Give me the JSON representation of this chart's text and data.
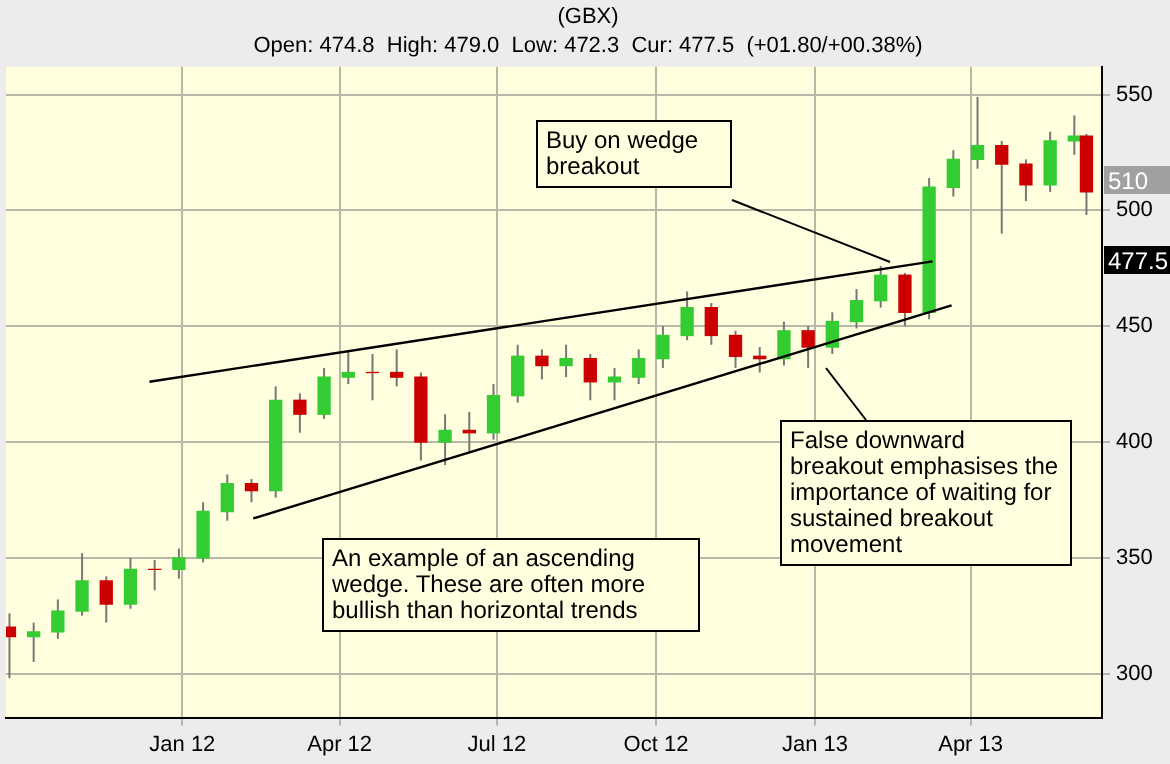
{
  "chart_data": {
    "type": "candlestick",
    "title": "(GBX)",
    "subtitle": "Open: 474.8  High: 479.0  Low: 472.3  Cur: 477.5  (+01.80/+00.38%)",
    "xlim": [
      "2011-09-21",
      "2013-06-16"
    ],
    "xticks": [
      {
        "value": "2012-01-01",
        "label": "Jan 12"
      },
      {
        "value": "2012-04-01",
        "label": "Apr 12"
      },
      {
        "value": "2012-07-01",
        "label": "Jul 12"
      },
      {
        "value": "2012-10-01",
        "label": "Oct 12"
      },
      {
        "value": "2013-01-01",
        "label": "Jan 13"
      },
      {
        "value": "2013-04-01",
        "label": "Apr 13"
      }
    ],
    "ylim": [
      281,
      562
    ],
    "yticks": [
      300,
      350,
      400,
      450,
      500,
      550
    ],
    "grid": true,
    "series": [
      {
        "x": [
          "2011-09-23",
          "2011-10-07",
          "2011-10-21",
          "2011-11-04",
          "2011-11-18",
          "2011-12-02",
          "2011-12-16",
          "2011-12-30",
          "2012-01-13",
          "2012-01-27",
          "2012-02-10",
          "2012-02-24",
          "2012-03-09",
          "2012-03-23",
          "2012-04-06",
          "2012-04-20",
          "2012-05-04",
          "2012-05-18",
          "2012-06-01",
          "2012-06-15",
          "2012-06-29",
          "2012-07-13",
          "2012-07-27",
          "2012-08-10",
          "2012-08-24",
          "2012-09-07",
          "2012-09-21",
          "2012-10-05",
          "2012-10-19",
          "2012-11-02",
          "2012-11-16",
          "2012-11-30",
          "2012-12-14",
          "2012-12-28",
          "2013-01-11",
          "2013-01-25",
          "2013-02-08",
          "2013-02-22",
          "2013-03-08",
          "2013-03-22",
          "2013-04-05",
          "2013-04-19",
          "2013-05-03",
          "2013-05-17",
          "2013-05-31",
          "2013-06-07"
        ],
        "ohlc": [
          [
            320,
            326,
            298,
            316
          ],
          [
            316,
            322,
            305,
            318
          ],
          [
            318,
            332,
            315,
            327
          ],
          [
            327,
            352,
            325,
            340
          ],
          [
            340,
            342,
            322,
            330
          ],
          [
            330,
            350,
            328,
            345
          ],
          [
            345,
            349,
            336,
            345
          ],
          [
            345,
            354,
            341,
            350
          ],
          [
            350,
            374,
            348,
            370
          ],
          [
            370,
            386,
            366,
            382
          ],
          [
            382,
            384,
            374,
            379
          ],
          [
            379,
            424,
            376,
            418
          ],
          [
            418,
            421,
            404,
            412
          ],
          [
            412,
            432,
            410,
            428
          ],
          [
            428,
            439,
            425,
            430
          ],
          [
            430,
            438,
            418,
            430
          ],
          [
            430,
            440,
            424,
            428
          ],
          [
            428,
            430,
            392,
            400
          ],
          [
            400,
            412,
            390,
            405
          ],
          [
            405,
            413,
            396,
            404
          ],
          [
            404,
            425,
            401,
            420
          ],
          [
            420,
            442,
            417,
            437
          ],
          [
            437,
            440,
            427,
            433
          ],
          [
            433,
            442,
            428,
            436
          ],
          [
            436,
            438,
            418,
            426
          ],
          [
            426,
            432,
            418,
            428
          ],
          [
            428,
            440,
            425,
            436
          ],
          [
            436,
            450,
            432,
            446
          ],
          [
            446,
            465,
            444,
            458
          ],
          [
            458,
            460,
            442,
            446
          ],
          [
            446,
            448,
            432,
            437
          ],
          [
            437,
            441,
            430,
            436
          ],
          [
            436,
            452,
            433,
            448
          ],
          [
            448,
            450,
            432,
            441
          ],
          [
            441,
            456,
            438,
            452
          ],
          [
            452,
            466,
            449,
            461
          ],
          [
            461,
            476,
            458,
            472
          ],
          [
            472,
            473,
            450,
            456
          ],
          [
            456,
            514,
            453,
            510
          ],
          [
            510,
            526,
            506,
            522
          ],
          [
            522,
            549,
            518,
            528
          ],
          [
            528,
            530,
            490,
            520
          ],
          [
            520,
            522,
            504,
            511
          ],
          [
            511,
            534,
            508,
            530
          ],
          [
            530,
            541,
            524,
            532
          ],
          [
            532,
            533,
            498,
            508
          ]
        ],
        "colors": [
          "#cc0000",
          "#33cc33",
          "#33cc33",
          "#33cc33",
          "#cc0000",
          "#33cc33",
          "#cc0000",
          "#33cc33",
          "#33cc33",
          "#33cc33",
          "#cc0000",
          "#33cc33",
          "#cc0000",
          "#33cc33",
          "#33cc33",
          "#cc0000",
          "#cc0000",
          "#cc0000",
          "#33cc33",
          "#cc0000",
          "#33cc33",
          "#33cc33",
          "#cc0000",
          "#33cc33",
          "#cc0000",
          "#33cc33",
          "#33cc33",
          "#33cc33",
          "#33cc33",
          "#cc0000",
          "#cc0000",
          "#cc0000",
          "#33cc33",
          "#cc0000",
          "#33cc33",
          "#33cc33",
          "#33cc33",
          "#cc0000",
          "#33cc33",
          "#33cc33",
          "#33cc33",
          "#cc0000",
          "#cc0000",
          "#33cc33",
          "#33cc33",
          "#cc0000"
        ]
      },
      {
        "type": "line",
        "color": "#000000",
        "x": [
          "2011-12-13",
          "2013-03-10"
        ],
        "values": [
          426,
          478
        ]
      },
      {
        "type": "line",
        "color": "#000000",
        "x": [
          "2012-02-11",
          "2013-03-21"
        ],
        "values": [
          367,
          459
        ]
      }
    ],
    "annotations": [
      "Buy on wedge breakout",
      "False downward breakout emphasises the importance of waiting for sustained breakout movement",
      "An example of an ascending wedge. These are often more bullish than horizontal trends",
      "510",
      "477.5"
    ]
  }
}
